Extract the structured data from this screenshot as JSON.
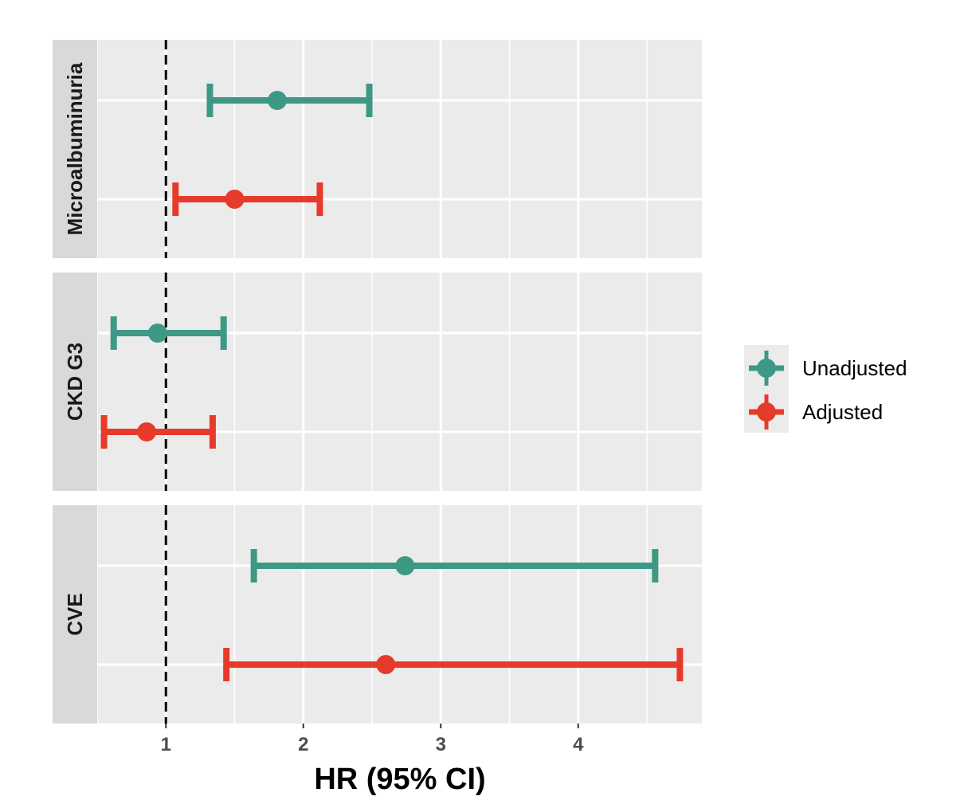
{
  "chart_data": {
    "type": "forest",
    "xlabel": "HR (95% CI)",
    "xlim": [
      0.5,
      4.9
    ],
    "x_ticks": [
      1,
      2,
      3,
      4
    ],
    "x_tick_labels": [
      "1",
      "2",
      "3",
      "4"
    ],
    "reference_line": 1,
    "facets": [
      {
        "label": "Microalbuminuria",
        "rows": [
          {
            "series": "Unadjusted",
            "estimate": 1.81,
            "lower": 1.32,
            "upper": 2.48
          },
          {
            "series": "Adjusted",
            "estimate": 1.5,
            "lower": 1.07,
            "upper": 2.12
          }
        ]
      },
      {
        "label": "CKD G3",
        "rows": [
          {
            "series": "Unadjusted",
            "estimate": 0.94,
            "lower": 0.62,
            "upper": 1.42
          },
          {
            "series": "Adjusted",
            "estimate": 0.86,
            "lower": 0.55,
            "upper": 1.34
          }
        ]
      },
      {
        "label": "CVE",
        "rows": [
          {
            "series": "Unadjusted",
            "estimate": 2.74,
            "lower": 1.64,
            "upper": 4.56
          },
          {
            "series": "Adjusted",
            "estimate": 2.6,
            "lower": 1.44,
            "upper": 4.74
          }
        ]
      }
    ],
    "legend": [
      {
        "name": "Unadjusted",
        "color": "#3d9985"
      },
      {
        "name": "Adjusted",
        "color": "#e63a2a"
      }
    ]
  }
}
